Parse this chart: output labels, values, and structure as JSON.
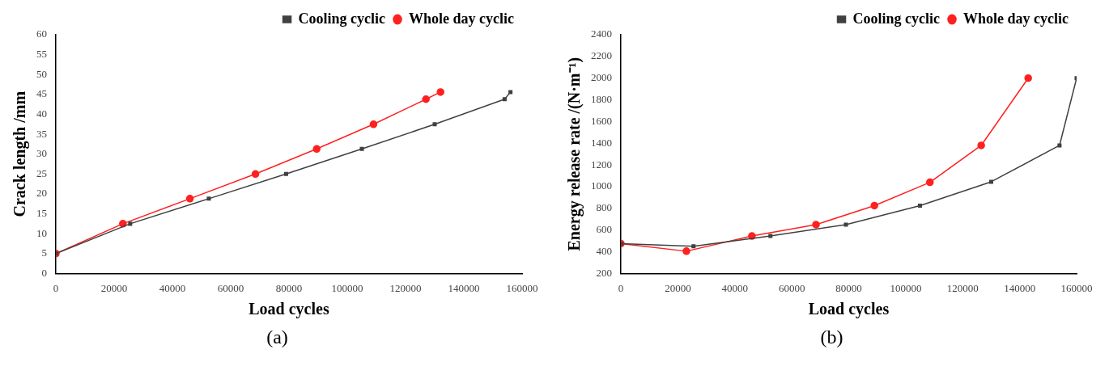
{
  "chart_data": [
    {
      "type": "line",
      "xlabel": "Load cycles",
      "ylabel": "Crack length /mm",
      "xlim": [
        0,
        160000
      ],
      "xticks": [
        0,
        20000,
        40000,
        60000,
        80000,
        100000,
        120000,
        140000,
        160000
      ],
      "ylim": [
        0,
        60
      ],
      "yticks": [
        0,
        5,
        10,
        15,
        20,
        25,
        30,
        35,
        40,
        45,
        50,
        55,
        60
      ],
      "grid": false,
      "legend": "top right",
      "annotations": [
        "(a)"
      ],
      "series": [
        {
          "name": "Cooling cyclic",
          "color": "#404040",
          "marker": "square",
          "x": [
            0,
            25500,
            52500,
            79000,
            105000,
            130000,
            154000,
            156000
          ],
          "values": [
            5,
            12.5,
            18.8,
            25,
            31.3,
            37.5,
            43.8,
            45.6
          ]
        },
        {
          "name": "Whole day cyclic",
          "color": "#ff2020",
          "marker": "circle",
          "x": [
            0,
            23000,
            46000,
            68500,
            89500,
            109000,
            127000,
            132000
          ],
          "values": [
            5,
            12.5,
            18.8,
            25,
            31.3,
            37.5,
            43.8,
            45.6
          ]
        }
      ]
    },
    {
      "type": "line",
      "xlabel": "Load cycles",
      "ylabel": "Energy release rate /(N·m⁻¹)",
      "xlim": [
        0,
        160000
      ],
      "xticks": [
        0,
        20000,
        40000,
        60000,
        80000,
        100000,
        120000,
        140000,
        160000
      ],
      "ylim": [
        200,
        2400
      ],
      "yticks": [
        200,
        400,
        600,
        800,
        1000,
        1200,
        1400,
        1600,
        1800,
        2000,
        2200,
        2400
      ],
      "grid": false,
      "legend": "top right",
      "annotations": [
        "(b)"
      ],
      "series": [
        {
          "name": "Cooling cyclic",
          "color": "#404040",
          "marker": "square",
          "x": [
            0,
            25500,
            52500,
            79000,
            105000,
            130000,
            154000,
            160000
          ],
          "values": [
            475,
            450,
            545,
            650,
            825,
            1045,
            1380,
            2000
          ]
        },
        {
          "name": "Whole day cyclic",
          "color": "#ff2020",
          "marker": "circle",
          "x": [
            0,
            23000,
            46000,
            68500,
            89000,
            108500,
            126500,
            143000
          ],
          "values": [
            475,
            405,
            545,
            650,
            825,
            1040,
            1380,
            2000
          ]
        }
      ]
    }
  ]
}
